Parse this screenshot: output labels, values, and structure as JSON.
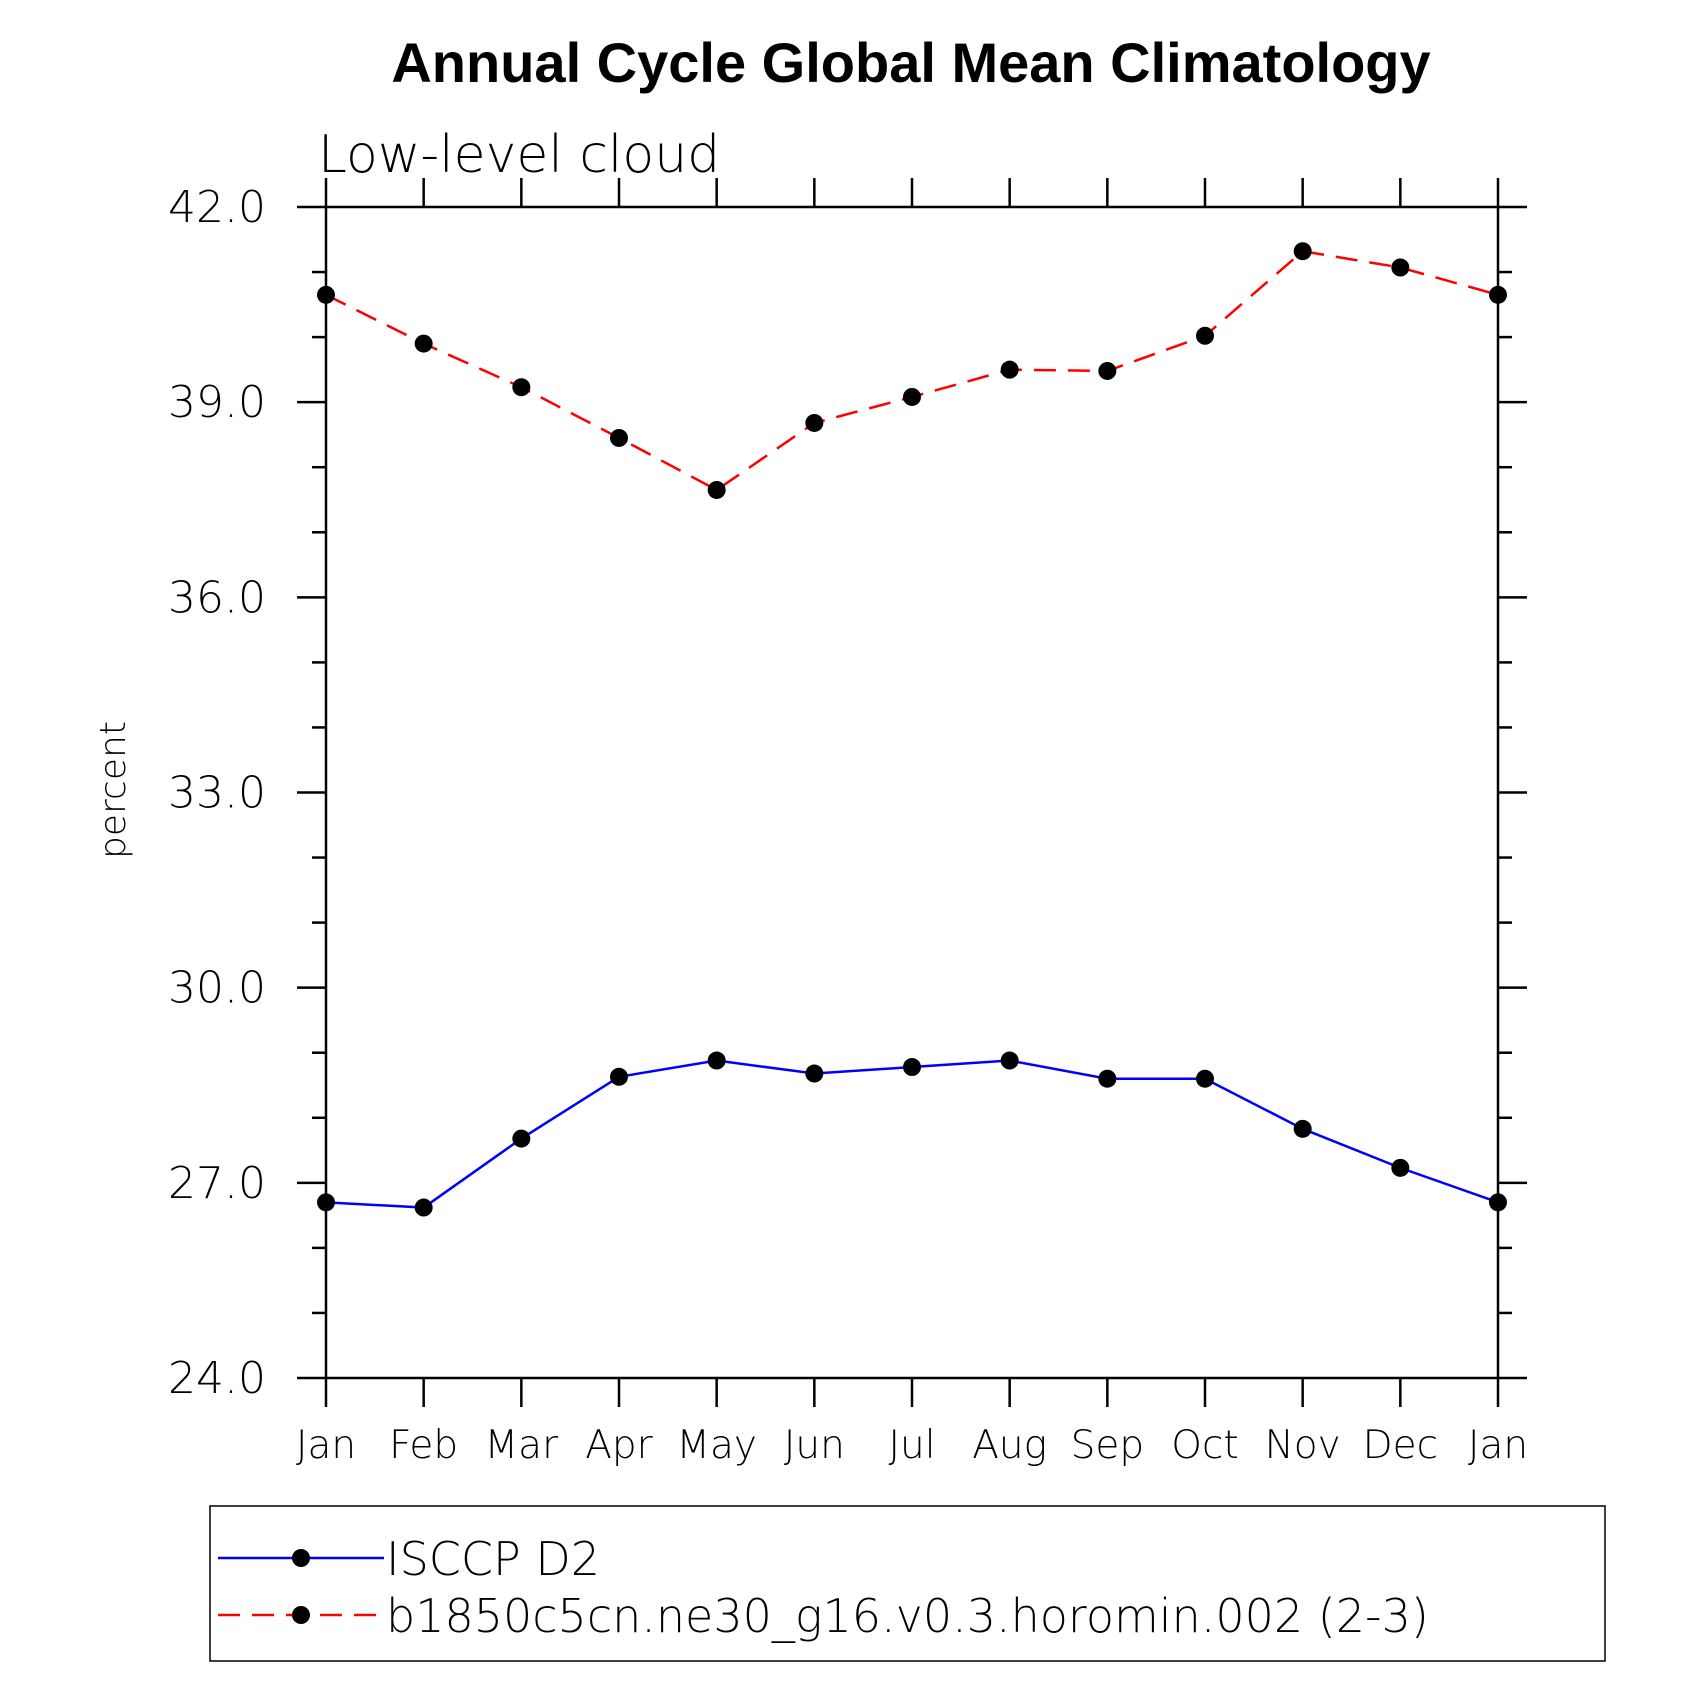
{
  "chart_data": {
    "type": "line",
    "title": "Annual Cycle Global Mean Climatology",
    "subtitle": "Low-level cloud",
    "xlabel": "",
    "ylabel": "percent",
    "categories": [
      "Jan",
      "Feb",
      "Mar",
      "Apr",
      "May",
      "Jun",
      "Jul",
      "Aug",
      "Sep",
      "Oct",
      "Nov",
      "Dec",
      "Jan"
    ],
    "ylim": [
      24.0,
      42.0
    ],
    "yticks": [
      "24.0",
      "27.0",
      "30.0",
      "33.0",
      "36.0",
      "39.0",
      "42.0"
    ],
    "ytick_values": [
      24,
      27,
      30,
      33,
      36,
      39,
      42
    ],
    "legend_position": "bottom",
    "grid": false,
    "series": [
      {
        "name": "ISCCP D2",
        "color": "#0000ff",
        "style": "solid",
        "marker": "circle",
        "values": [
          26.7,
          26.62,
          27.68,
          28.63,
          28.88,
          28.68,
          28.78,
          28.88,
          28.6,
          28.6,
          27.83,
          27.23,
          26.7
        ]
      },
      {
        "name": "b1850c5cn.ne30_g16.v0.3.horomin.002 (2-3)",
        "color": "#ff0000",
        "style": "dashed",
        "marker": "circle",
        "values": [
          40.65,
          39.9,
          39.23,
          38.45,
          37.65,
          38.68,
          39.08,
          39.5,
          39.48,
          40.02,
          41.32,
          41.07,
          40.65
        ]
      }
    ]
  }
}
